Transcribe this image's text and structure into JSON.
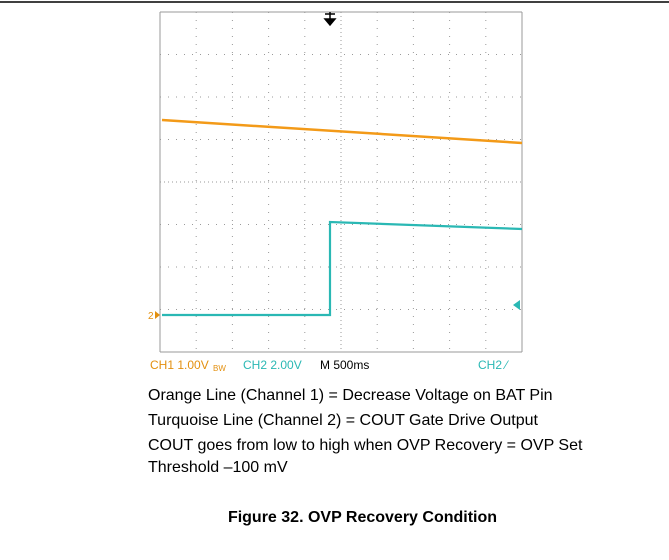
{
  "scope": {
    "status": {
      "ch1": "CH1 1.00V",
      "bw": "BW",
      "ch2": "CH2 2.00V",
      "timebase": "M 500ms",
      "trigger": "CH2 ⁄"
    },
    "ch2_marker": "2"
  },
  "caption": {
    "lines": [
      "Orange Line (Channel 1) = Decrease Voltage on BAT Pin",
      "Turquoise Line (Channel 2) = COUT Gate Drive Output",
      "COUT goes from low to high when OVP Recovery = OVP Set",
      "Threshold –100 mV"
    ]
  },
  "figure_title": "Figure 32. OVP Recovery Condition"
}
